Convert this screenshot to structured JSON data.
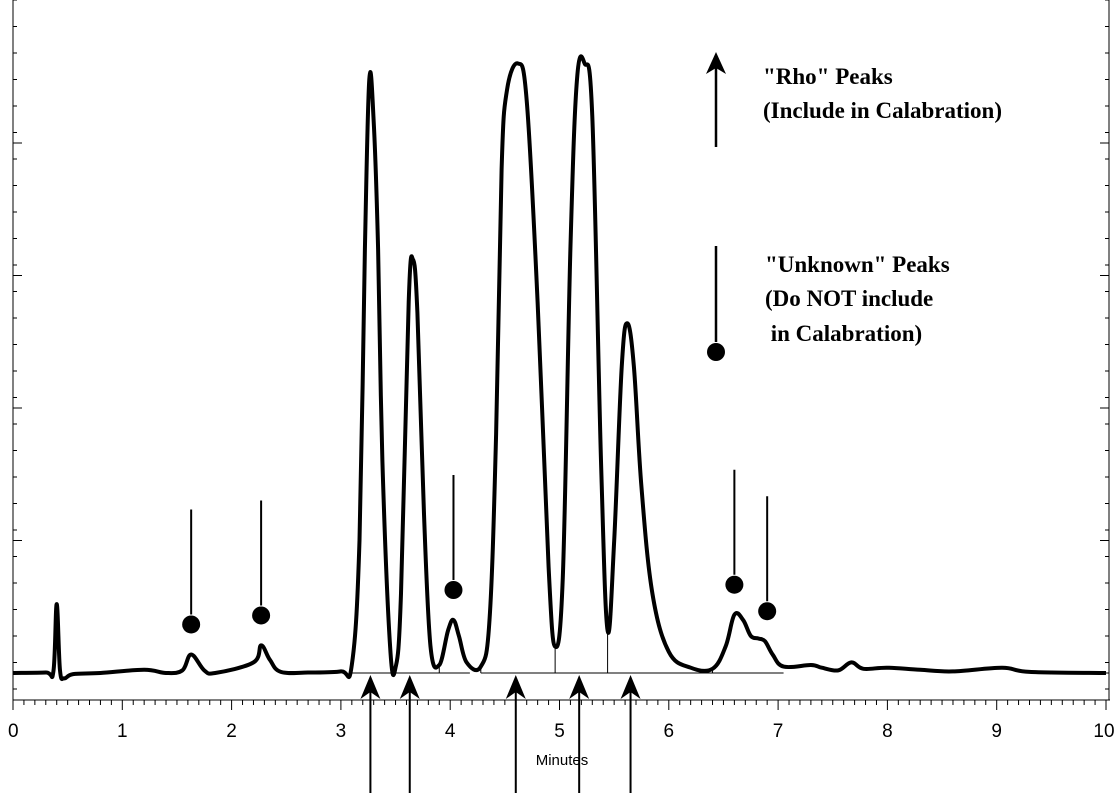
{
  "chart_data": {
    "type": "line",
    "xlabel": "Minutes",
    "xlim": [
      0,
      10
    ],
    "ylim": [
      0,
      100
    ],
    "x_ticks": [
      "0",
      "1",
      "2",
      "3",
      "4",
      "5",
      "6",
      "7",
      "8",
      "9",
      "10"
    ],
    "grid": false,
    "series": [
      {
        "trace": [
          [
            0.0,
            0.0
          ],
          [
            0.3,
            0.1
          ],
          [
            0.37,
            0.3
          ],
          [
            0.4,
            13.0
          ],
          [
            0.43,
            0.5
          ],
          [
            0.47,
            -1.0
          ],
          [
            0.55,
            -0.2
          ],
          [
            0.8,
            0.0
          ],
          [
            1.2,
            0.6
          ],
          [
            1.4,
            0.0
          ],
          [
            1.55,
            0.5
          ],
          [
            1.63,
            3.5
          ],
          [
            1.75,
            0.5
          ],
          [
            1.85,
            0.0
          ],
          [
            2.2,
            2.0
          ],
          [
            2.27,
            5.2
          ],
          [
            2.35,
            2.5
          ],
          [
            2.45,
            0.2
          ],
          [
            2.7,
            0.1
          ],
          [
            3.0,
            0.3
          ],
          [
            3.1,
            1.5
          ],
          [
            3.17,
            25.0
          ],
          [
            3.22,
            80.0
          ],
          [
            3.26,
            112.0
          ],
          [
            3.3,
            104.0
          ],
          [
            3.34,
            80.0
          ],
          [
            3.38,
            40.0
          ],
          [
            3.45,
            5.0
          ],
          [
            3.5,
            1.0
          ],
          [
            3.55,
            15.0
          ],
          [
            3.62,
            70.0
          ],
          [
            3.66,
            78.0
          ],
          [
            3.7,
            68.0
          ],
          [
            3.76,
            30.0
          ],
          [
            3.82,
            5.0
          ],
          [
            3.9,
            1.5
          ],
          [
            3.98,
            8.0
          ],
          [
            4.03,
            10.0
          ],
          [
            4.08,
            7.0
          ],
          [
            4.15,
            2.0
          ],
          [
            4.28,
            1.2
          ],
          [
            4.36,
            10.0
          ],
          [
            4.42,
            45.0
          ],
          [
            4.47,
            95.0
          ],
          [
            4.52,
            110.0
          ],
          [
            4.62,
            115.0
          ],
          [
            4.7,
            108.0
          ],
          [
            4.8,
            70.0
          ],
          [
            4.9,
            20.0
          ],
          [
            4.96,
            5.0
          ],
          [
            5.03,
            18.0
          ],
          [
            5.1,
            80.0
          ],
          [
            5.16,
            112.0
          ],
          [
            5.23,
            115.0
          ],
          [
            5.3,
            105.0
          ],
          [
            5.38,
            40.0
          ],
          [
            5.44,
            8.0
          ],
          [
            5.5,
            25.0
          ],
          [
            5.57,
            58.0
          ],
          [
            5.62,
            66.0
          ],
          [
            5.68,
            58.0
          ],
          [
            5.75,
            35.0
          ],
          [
            5.85,
            15.0
          ],
          [
            6.0,
            4.0
          ],
          [
            6.2,
            1.0
          ],
          [
            6.4,
            0.8
          ],
          [
            6.52,
            5.0
          ],
          [
            6.6,
            11.0
          ],
          [
            6.68,
            10.0
          ],
          [
            6.75,
            7.0
          ],
          [
            6.82,
            6.5
          ],
          [
            6.88,
            6.0
          ],
          [
            6.95,
            3.5
          ],
          [
            7.05,
            1.2
          ],
          [
            7.3,
            1.5
          ],
          [
            7.4,
            1.0
          ],
          [
            7.55,
            0.5
          ],
          [
            7.67,
            2.0
          ],
          [
            7.78,
            0.8
          ],
          [
            8.0,
            1.0
          ],
          [
            8.3,
            0.6
          ],
          [
            8.6,
            0.3
          ],
          [
            9.05,
            1.0
          ],
          [
            9.3,
            0.2
          ],
          [
            10.0,
            0.0
          ]
        ]
      }
    ],
    "rho_peaks": [
      3.27,
      3.63,
      4.6,
      5.18,
      5.65
    ],
    "unknown_peaks": [
      {
        "x": 1.63,
        "y": 3.5
      },
      {
        "x": 2.27,
        "y": 5.2
      },
      {
        "x": 4.03,
        "y": 10.0
      },
      {
        "x": 6.6,
        "y": 11.0
      },
      {
        "x": 6.9,
        "y": 6.0
      }
    ],
    "baseline_segments": [
      [
        3.1,
        4.18
      ],
      [
        4.28,
        7.05
      ]
    ],
    "legend": {
      "rho_line1": "\"Rho\" Peaks",
      "rho_line2": "(Include in Calabration)",
      "unknown_line1": "\"Unknown\" Peaks",
      "unknown_line2": "(Do NOT include",
      "unknown_line3": " in Calabration)"
    }
  }
}
